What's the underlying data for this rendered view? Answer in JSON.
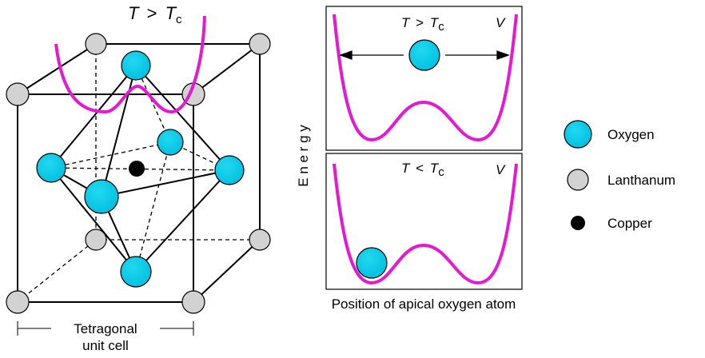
{
  "crystal": {
    "temp_label": {
      "var": "T",
      "op": ">",
      "sub_var": "T",
      "sub": "c"
    },
    "unit_cell_label": {
      "line1": "Tetragonal",
      "line2": "unit cell"
    }
  },
  "energy_plots": {
    "y_label": "E n e r g y",
    "x_label": "Position of apical oxygen atom",
    "top": {
      "var": "T",
      "op": ">",
      "sub_var": "T",
      "sub": "c",
      "potential": "V"
    },
    "bottom": {
      "var": "T",
      "op": "<",
      "sub_var": "T",
      "sub": "c",
      "potential": "V"
    }
  },
  "legend": {
    "items": [
      {
        "label": "Oxygen",
        "color": "#00c8e6"
      },
      {
        "label": "Lanthanum",
        "color": "#d2d2d2"
      },
      {
        "label": "Copper",
        "color": "#000000"
      }
    ]
  },
  "colors": {
    "curve": "#e619d2",
    "oxygen": "#00c8e6",
    "lanthanum": "#d2d2d2",
    "copper": "#000000"
  }
}
